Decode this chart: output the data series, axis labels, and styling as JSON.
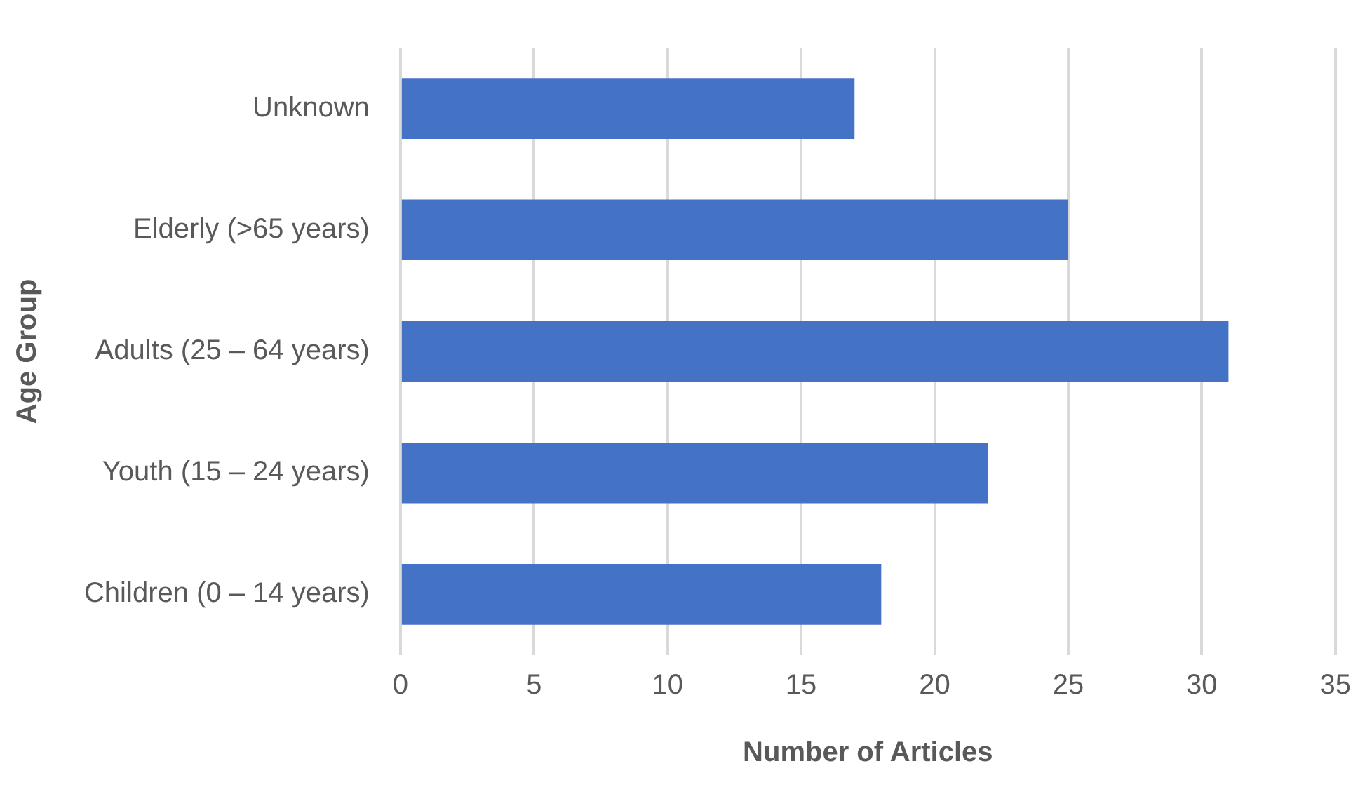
{
  "chart_data": {
    "type": "bar",
    "orientation": "horizontal",
    "xlabel": "Number of Articles",
    "ylabel": "Age Group",
    "categories": [
      "Unknown",
      "Elderly (>65 years)",
      "Adults (25 – 64 years)",
      "Youth (15 – 24 years)",
      "Children (0 – 14 years)"
    ],
    "values": [
      17,
      25,
      31,
      22,
      18
    ],
    "color": "#4472c4",
    "xlim": [
      0,
      35
    ],
    "xticks": [
      0,
      5,
      10,
      15,
      20,
      25,
      30,
      35
    ],
    "grid": "x"
  }
}
